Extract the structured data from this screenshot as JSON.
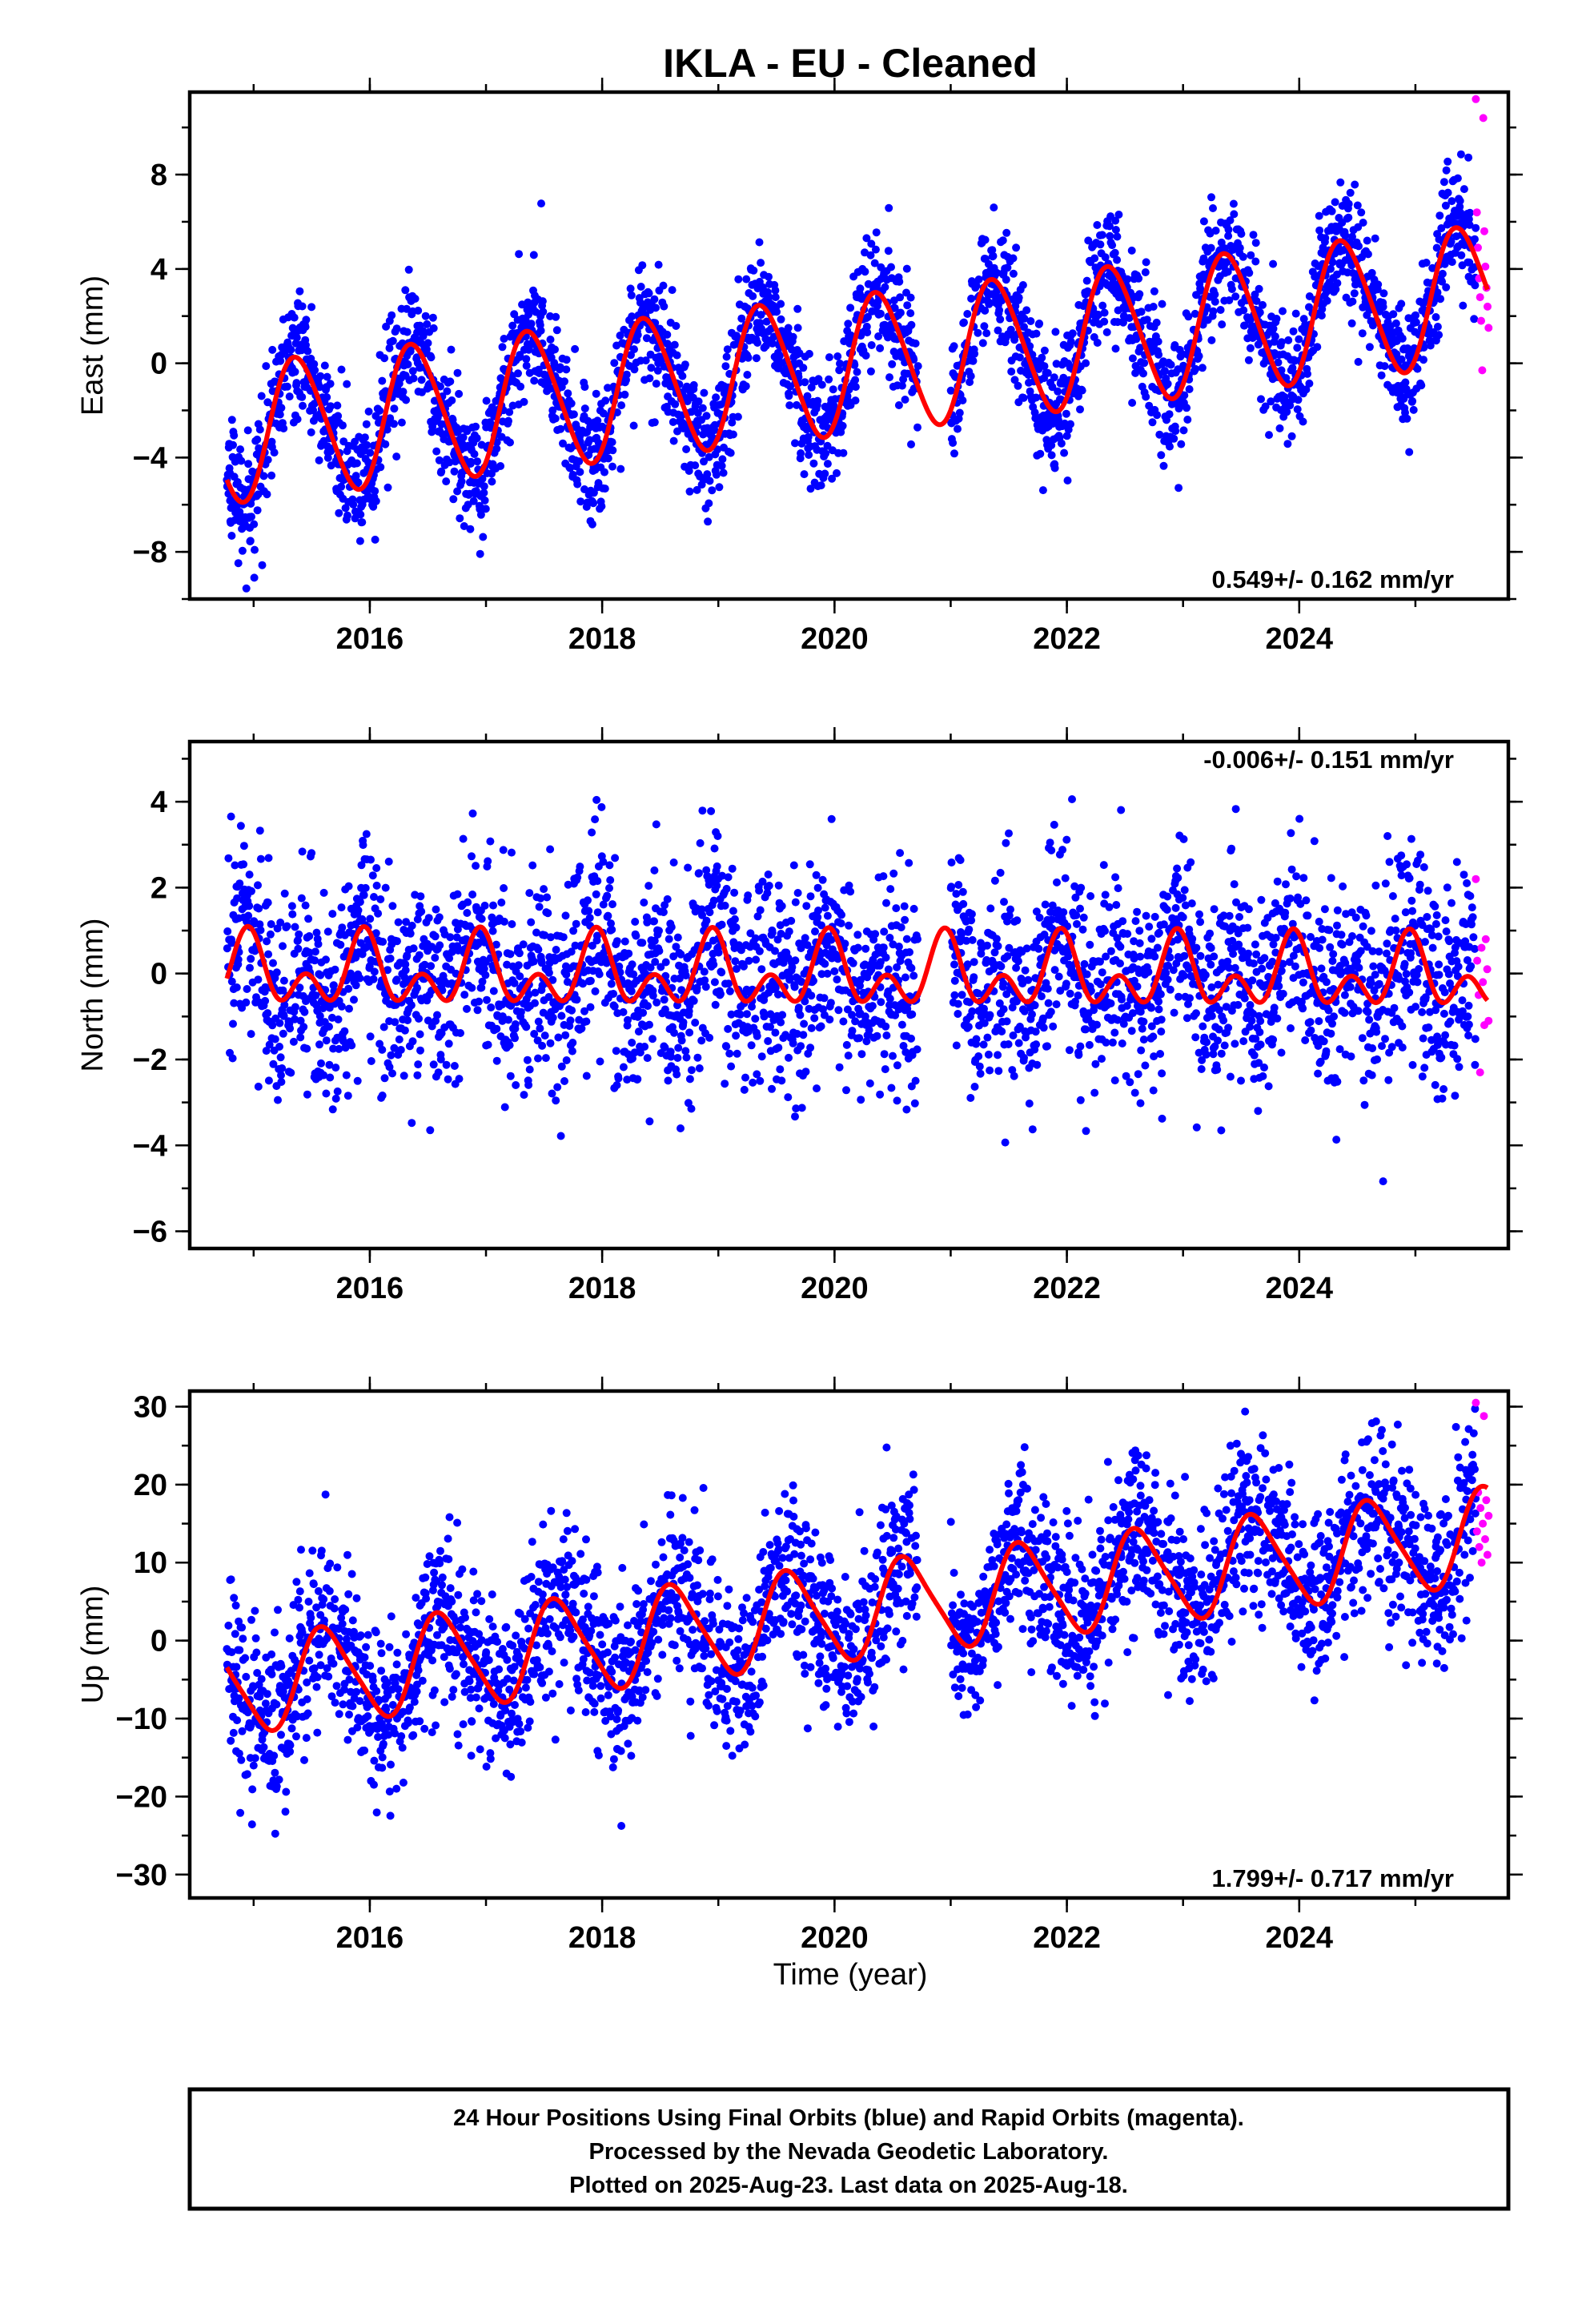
{
  "title": "IKLA  - EU - Cleaned",
  "xlabel": "Time (year)",
  "footer": {
    "line1": "24 Hour Positions Using Final Orbits (blue) and Rapid Orbits (magenta).",
    "line2": "Processed by the Nevada Geodetic Laboratory.",
    "line3": "Plotted on 2025-Aug-23. Last data on 2025-Aug-18."
  },
  "colors": {
    "final_orbits": "#0000ff",
    "rapid_orbits": "#ff00ff",
    "model": "#ff0000",
    "frame": "#000000"
  },
  "chart_data": [
    {
      "type": "scatter",
      "component": "east",
      "ylabel": "East (mm)",
      "rate_label": "0.549+/- 0.162 mm/yr",
      "rate_label_position": "bottom-right",
      "xlim": [
        2014.45,
        2025.8
      ],
      "ylim": [
        -10,
        11.5
      ],
      "x_ticks": [
        2016,
        2018,
        2020,
        2022,
        2024
      ],
      "y_ticks": [
        -8,
        -4,
        0,
        4,
        8
      ],
      "grid": false,
      "model": {
        "name": "",
        "x_start": 2014.77,
        "x_end": 2025.62,
        "offset_at_start": -3.0,
        "rate_mm_per_yr": 0.549,
        "annual_amplitude": 2.9,
        "annual_peak_fraction": 0.38,
        "semiannual_amplitude": 0.3,
        "semiannual_peak_fraction": 0.25
      },
      "scatter_summary": {
        "final_orbits_x_range": [
          2014.77,
          2025.52
        ],
        "final_orbits_noise_sd": 1.3,
        "final_orbits_data_gap": [
          2020.72,
          2021.0
        ],
        "rapid_orbits_x_range": [
          2025.52,
          2025.63
        ],
        "rapid_orbits_y_values": [
          11.2,
          10.4,
          6.4,
          5.6,
          4.9,
          4.1,
          3.6,
          3.2,
          2.8,
          2.4,
          1.8,
          1.5,
          -0.3
        ]
      }
    },
    {
      "type": "scatter",
      "component": "north",
      "ylabel": "North (mm)",
      "rate_label": "-0.006+/- 0.151 mm/yr",
      "rate_label_position": "top-right",
      "xlim": [
        2014.45,
        2025.8
      ],
      "ylim": [
        -6.4,
        5.4
      ],
      "x_ticks": [
        2016,
        2018,
        2020,
        2022,
        2024
      ],
      "y_ticks": [
        -6,
        -4,
        -2,
        0,
        2,
        4
      ],
      "grid": false,
      "model": {
        "name": "",
        "x_start": 2014.77,
        "x_end": 2025.62,
        "offset_at_start": 0.0,
        "rate_mm_per_yr": -0.006,
        "annual_amplitude": 0.55,
        "annual_peak_fraction": 0.95,
        "semiannual_amplitude": 0.55,
        "semiannual_peak_fraction": 0.45
      },
      "scatter_summary": {
        "final_orbits_x_range": [
          2014.77,
          2025.52
        ],
        "final_orbits_noise_sd": 1.2,
        "final_orbits_data_gap": [
          2020.72,
          2021.0
        ],
        "rapid_orbits_x_range": [
          2025.52,
          2025.63
        ],
        "rapid_orbits_y_values": [
          2.2,
          0.8,
          0.6,
          0.3,
          0.1,
          -0.2,
          -0.5,
          -1.1,
          -1.2,
          -2.3
        ]
      }
    },
    {
      "type": "scatter",
      "component": "up",
      "ylabel": "Up (mm)",
      "rate_label": "1.799+/- 0.717 mm/yr",
      "rate_label_position": "bottom-right",
      "xlim": [
        2014.45,
        2025.8
      ],
      "ylim": [
        -33,
        32
      ],
      "x_ticks": [
        2016,
        2018,
        2020,
        2022,
        2024
      ],
      "y_ticks": [
        -30,
        -20,
        -10,
        0,
        10,
        20,
        30
      ],
      "grid": false,
      "model": {
        "name": "",
        "x_start": 2014.77,
        "x_end": 2025.62,
        "offset_at_start": -6.0,
        "rate_mm_per_yr": 1.799,
        "annual_amplitude": 6.0,
        "annual_peak_fraction": 0.62,
        "semiannual_amplitude": 1.0,
        "semiannual_peak_fraction": 0.5
      },
      "scatter_summary": {
        "final_orbits_x_range": [
          2014.77,
          2025.52
        ],
        "final_orbits_noise_sd": 5.5,
        "final_orbits_data_gap": [
          2020.72,
          2021.0
        ],
        "rapid_orbits_x_range": [
          2025.52,
          2025.63
        ],
        "rapid_orbits_y_values": [
          30.5,
          28.8,
          19.0,
          18.0,
          17.0,
          16.0,
          15.0,
          14.0,
          13.0,
          12.0,
          11.0,
          10.0
        ]
      }
    }
  ]
}
